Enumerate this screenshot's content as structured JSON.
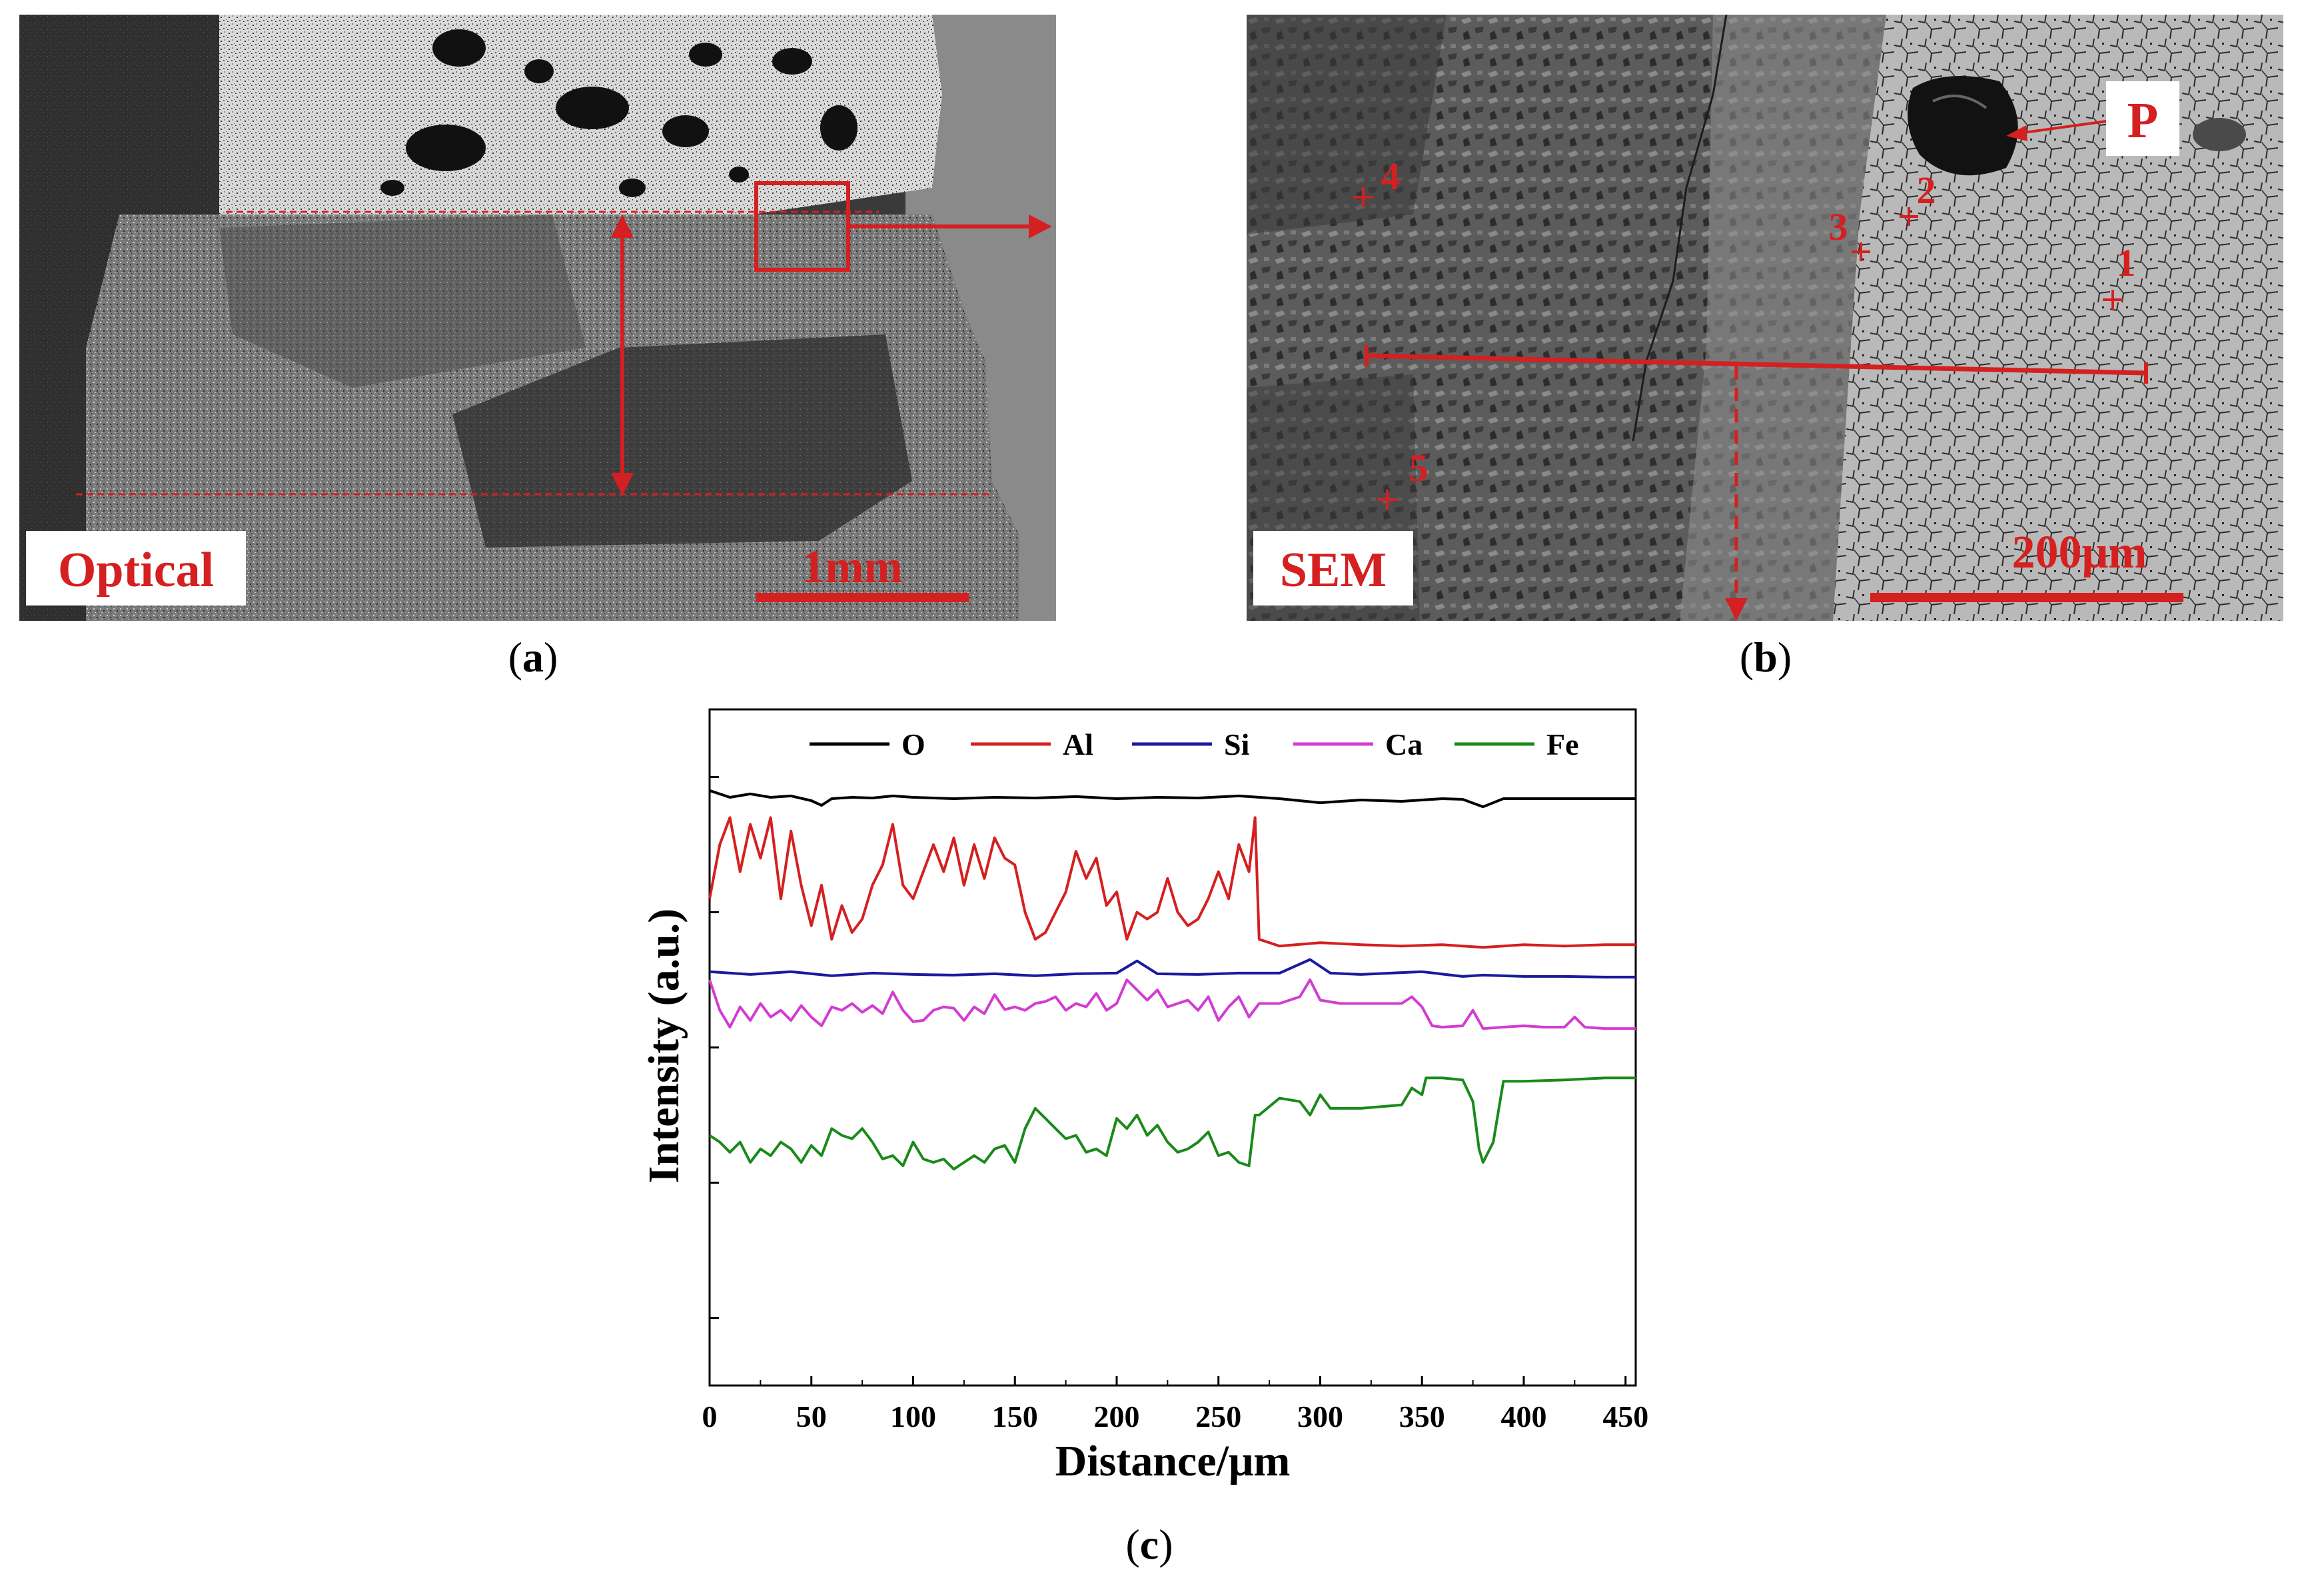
{
  "panels": {
    "a": {
      "label_text": "Optical",
      "scale_text": "1mm",
      "caption_letter": "a"
    },
    "b": {
      "label_text": "SEM",
      "scale_text": "200μm",
      "marker_P": "P",
      "points": [
        "1",
        "2",
        "3",
        "4",
        "5"
      ],
      "caption_letter": "b"
    },
    "c": {
      "caption_letter": "c"
    }
  },
  "colors": {
    "annotation_red": "#d42020",
    "O": "#000000",
    "Al": "#d42020",
    "Si": "#1a1aa0",
    "Ca": "#d23cd2",
    "Fe": "#1a8a1a"
  },
  "chart_data": {
    "type": "line",
    "xlabel": "Distance/μm",
    "ylabel": "Intensity (a.u.)",
    "xlim": [
      0,
      455
    ],
    "xticks": [
      0,
      50,
      100,
      150,
      200,
      250,
      300,
      350,
      400,
      450
    ],
    "y_ticks_labeled": false,
    "legend_position": "top",
    "legend": [
      "O",
      "Al",
      "Si",
      "Ca",
      "Fe"
    ],
    "series": [
      {
        "name": "O",
        "x": [
          0,
          10,
          20,
          30,
          40,
          50,
          55,
          60,
          70,
          80,
          90,
          100,
          120,
          140,
          160,
          180,
          200,
          220,
          240,
          260,
          280,
          300,
          320,
          340,
          360,
          370,
          380,
          390,
          400,
          420,
          440,
          455
        ],
        "y": [
          0.88,
          0.87,
          0.875,
          0.87,
          0.872,
          0.865,
          0.858,
          0.868,
          0.87,
          0.869,
          0.872,
          0.87,
          0.868,
          0.87,
          0.869,
          0.871,
          0.868,
          0.87,
          0.869,
          0.872,
          0.868,
          0.862,
          0.866,
          0.864,
          0.868,
          0.867,
          0.856,
          0.868,
          0.868,
          0.868,
          0.868,
          0.868
        ]
      },
      {
        "name": "Al",
        "x": [
          0,
          5,
          10,
          15,
          20,
          25,
          30,
          35,
          40,
          45,
          50,
          55,
          60,
          65,
          70,
          75,
          80,
          85,
          90,
          95,
          100,
          105,
          110,
          115,
          120,
          125,
          130,
          135,
          140,
          145,
          150,
          155,
          160,
          165,
          170,
          175,
          180,
          185,
          190,
          195,
          200,
          205,
          210,
          215,
          220,
          225,
          230,
          235,
          240,
          245,
          250,
          255,
          260,
          265,
          268,
          270,
          280,
          300,
          320,
          340,
          360,
          380,
          400,
          420,
          440,
          455
        ],
        "y": [
          0.72,
          0.8,
          0.84,
          0.76,
          0.83,
          0.78,
          0.84,
          0.72,
          0.82,
          0.74,
          0.68,
          0.74,
          0.66,
          0.71,
          0.67,
          0.69,
          0.74,
          0.77,
          0.83,
          0.74,
          0.72,
          0.76,
          0.8,
          0.76,
          0.81,
          0.74,
          0.8,
          0.75,
          0.81,
          0.78,
          0.77,
          0.7,
          0.66,
          0.67,
          0.7,
          0.73,
          0.79,
          0.75,
          0.78,
          0.71,
          0.73,
          0.66,
          0.7,
          0.69,
          0.7,
          0.75,
          0.7,
          0.68,
          0.69,
          0.72,
          0.76,
          0.72,
          0.8,
          0.76,
          0.84,
          0.66,
          0.65,
          0.655,
          0.652,
          0.65,
          0.652,
          0.648,
          0.652,
          0.65,
          0.652,
          0.652
        ]
      },
      {
        "name": "Si",
        "x": [
          0,
          20,
          40,
          60,
          80,
          100,
          120,
          140,
          160,
          180,
          200,
          210,
          220,
          240,
          260,
          280,
          295,
          305,
          320,
          350,
          370,
          380,
          400,
          420,
          440,
          455
        ],
        "y": [
          0.612,
          0.608,
          0.612,
          0.606,
          0.61,
          0.608,
          0.607,
          0.609,
          0.606,
          0.609,
          0.61,
          0.628,
          0.609,
          0.608,
          0.61,
          0.61,
          0.63,
          0.61,
          0.608,
          0.612,
          0.605,
          0.607,
          0.605,
          0.605,
          0.604,
          0.604
        ]
      },
      {
        "name": "Ca",
        "x": [
          0,
          5,
          10,
          15,
          20,
          25,
          30,
          35,
          40,
          45,
          50,
          55,
          60,
          65,
          70,
          75,
          80,
          85,
          90,
          95,
          100,
          105,
          110,
          115,
          120,
          125,
          130,
          135,
          140,
          145,
          150,
          155,
          160,
          165,
          170,
          175,
          180,
          185,
          190,
          195,
          200,
          205,
          210,
          215,
          220,
          225,
          230,
          235,
          240,
          245,
          250,
          255,
          260,
          265,
          270,
          280,
          290,
          295,
          300,
          310,
          320,
          330,
          340,
          345,
          350,
          355,
          360,
          370,
          375,
          380,
          390,
          400,
          410,
          420,
          425,
          430,
          440,
          455
        ],
        "y": [
          0.6,
          0.555,
          0.53,
          0.56,
          0.54,
          0.565,
          0.545,
          0.555,
          0.54,
          0.562,
          0.545,
          0.532,
          0.56,
          0.555,
          0.565,
          0.552,
          0.562,
          0.55,
          0.582,
          0.555,
          0.538,
          0.54,
          0.555,
          0.56,
          0.558,
          0.54,
          0.56,
          0.55,
          0.578,
          0.556,
          0.56,
          0.555,
          0.565,
          0.568,
          0.575,
          0.555,
          0.565,
          0.56,
          0.58,
          0.555,
          0.565,
          0.6,
          0.585,
          0.57,
          0.585,
          0.56,
          0.565,
          0.57,
          0.555,
          0.575,
          0.54,
          0.56,
          0.575,
          0.545,
          0.565,
          0.565,
          0.575,
          0.6,
          0.57,
          0.565,
          0.565,
          0.565,
          0.565,
          0.575,
          0.56,
          0.532,
          0.53,
          0.532,
          0.555,
          0.528,
          0.53,
          0.532,
          0.53,
          0.53,
          0.545,
          0.53,
          0.528,
          0.528
        ]
      },
      {
        "name": "Fe",
        "x": [
          0,
          5,
          10,
          15,
          20,
          25,
          30,
          35,
          40,
          45,
          50,
          55,
          60,
          65,
          70,
          75,
          80,
          85,
          90,
          95,
          100,
          105,
          110,
          115,
          120,
          125,
          130,
          135,
          140,
          145,
          150,
          155,
          160,
          165,
          170,
          175,
          180,
          185,
          190,
          195,
          200,
          205,
          210,
          215,
          220,
          225,
          230,
          235,
          240,
          245,
          250,
          255,
          260,
          265,
          268,
          270,
          280,
          290,
          295,
          300,
          305,
          320,
          340,
          345,
          350,
          352,
          360,
          370,
          375,
          378,
          380,
          385,
          390,
          400,
          420,
          440,
          455
        ],
        "y": [
          0.37,
          0.36,
          0.345,
          0.36,
          0.33,
          0.35,
          0.34,
          0.36,
          0.35,
          0.33,
          0.355,
          0.34,
          0.38,
          0.37,
          0.365,
          0.38,
          0.36,
          0.335,
          0.34,
          0.325,
          0.36,
          0.335,
          0.33,
          0.335,
          0.32,
          0.33,
          0.34,
          0.33,
          0.35,
          0.355,
          0.33,
          0.38,
          0.41,
          0.395,
          0.38,
          0.365,
          0.37,
          0.345,
          0.35,
          0.34,
          0.395,
          0.38,
          0.4,
          0.37,
          0.385,
          0.36,
          0.345,
          0.35,
          0.36,
          0.375,
          0.34,
          0.345,
          0.33,
          0.325,
          0.4,
          0.4,
          0.425,
          0.42,
          0.4,
          0.43,
          0.41,
          0.41,
          0.415,
          0.44,
          0.43,
          0.455,
          0.455,
          0.452,
          0.42,
          0.35,
          0.33,
          0.36,
          0.45,
          0.45,
          0.452,
          0.455,
          0.455
        ]
      }
    ]
  }
}
